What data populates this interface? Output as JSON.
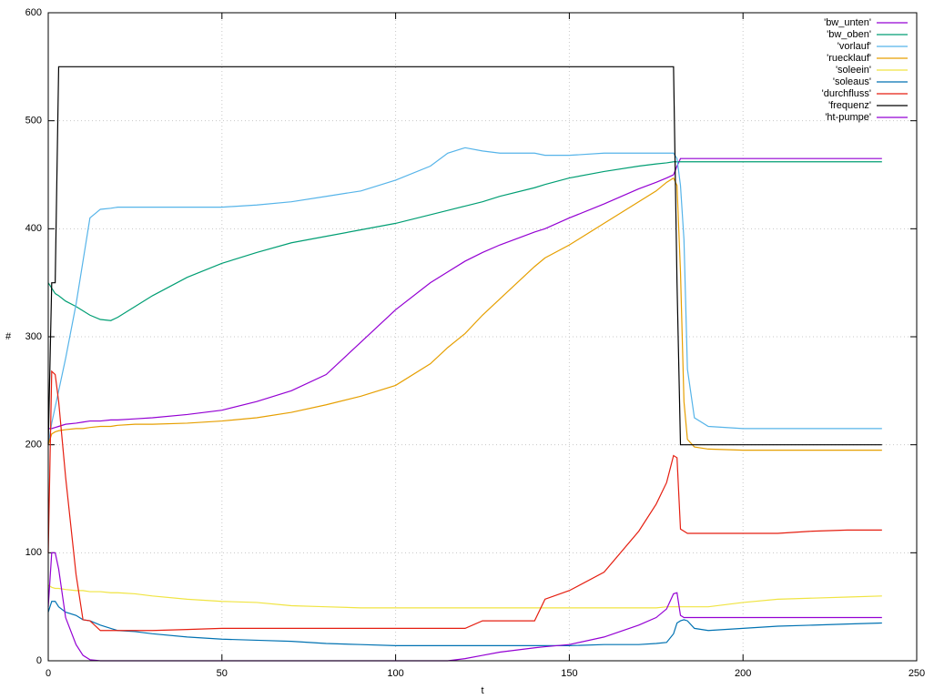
{
  "chart_data": {
    "type": "line",
    "x_label": "t",
    "y_label": "#",
    "xlim": [
      0,
      250
    ],
    "xticks": [
      0,
      50,
      100,
      150,
      200,
      250
    ],
    "ylim": [
      0,
      600
    ],
    "yticks": [
      0,
      100,
      200,
      300,
      400,
      500,
      600
    ],
    "grid": true,
    "legend": "top-right",
    "x": [
      0,
      1,
      2,
      3,
      5,
      8,
      10,
      12,
      15,
      18,
      20,
      25,
      30,
      40,
      50,
      60,
      70,
      80,
      90,
      100,
      110,
      115,
      120,
      125,
      130,
      140,
      143,
      150,
      160,
      170,
      175,
      178,
      180,
      181,
      182,
      183,
      184,
      186,
      190,
      200,
      210,
      220,
      230,
      240
    ],
    "series": [
      {
        "name": "'bw_unten'",
        "color": "#9400d3",
        "values": [
          215,
          215,
          216,
          217,
          219,
          220,
          221,
          222,
          222,
          223,
          223,
          224,
          225,
          228,
          232,
          240,
          250,
          265,
          295,
          325,
          350,
          360,
          370,
          378,
          385,
          397,
          400,
          410,
          423,
          437,
          443,
          447,
          450,
          458,
          465,
          465,
          465,
          465,
          465,
          465,
          465,
          465,
          465,
          465
        ]
      },
      {
        "name": "'bw_oben'",
        "color": "#009e73",
        "values": [
          350,
          345,
          340,
          338,
          333,
          328,
          324,
          320,
          316,
          315,
          318,
          328,
          338,
          355,
          368,
          378,
          387,
          393,
          399,
          405,
          413,
          417,
          421,
          425,
          430,
          438,
          441,
          447,
          453,
          458,
          460,
          461,
          462,
          462,
          462,
          462,
          462,
          462,
          462,
          462,
          462,
          462,
          462,
          462
        ]
      },
      {
        "name": "'vorlauf'",
        "color": "#56b4e9",
        "values": [
          200,
          220,
          235,
          250,
          280,
          330,
          370,
          410,
          418,
          419,
          420,
          420,
          420,
          420,
          420,
          422,
          425,
          430,
          435,
          445,
          458,
          470,
          475,
          472,
          470,
          470,
          468,
          468,
          470,
          470,
          470,
          470,
          470,
          465,
          440,
          390,
          270,
          225,
          217,
          215,
          215,
          215,
          215,
          215
        ]
      },
      {
        "name": "'ruecklauf'",
        "color": "#e69f00",
        "values": [
          200,
          210,
          212,
          213,
          214,
          215,
          215,
          216,
          217,
          217,
          218,
          219,
          219,
          220,
          222,
          225,
          230,
          237,
          245,
          255,
          275,
          290,
          303,
          320,
          335,
          365,
          373,
          385,
          405,
          425,
          435,
          443,
          447,
          440,
          360,
          240,
          205,
          198,
          196,
          195,
          195,
          195,
          195,
          195
        ]
      },
      {
        "name": "'soleein'",
        "color": "#f0e442",
        "values": [
          70,
          68,
          67,
          67,
          66,
          65,
          65,
          64,
          64,
          63,
          63,
          62,
          60,
          57,
          55,
          54,
          51,
          50,
          49,
          49,
          49,
          49,
          49,
          49,
          49,
          49,
          49,
          49,
          49,
          49,
          49,
          50,
          50,
          50,
          50,
          50,
          50,
          50,
          50,
          54,
          57,
          58,
          59,
          60
        ]
      },
      {
        "name": "'soleaus'",
        "color": "#0072b2",
        "values": [
          45,
          55,
          55,
          50,
          45,
          42,
          38,
          37,
          33,
          30,
          28,
          27,
          25,
          22,
          20,
          19,
          18,
          16,
          15,
          14,
          14,
          14,
          14,
          14,
          14,
          14,
          14,
          14,
          15,
          15,
          16,
          17,
          25,
          35,
          37,
          38,
          37,
          30,
          28,
          30,
          32,
          33,
          34,
          35
        ]
      },
      {
        "name": "'durchfluss'",
        "color": "#e51e10",
        "values": [
          100,
          268,
          265,
          240,
          170,
          80,
          38,
          37,
          28,
          28,
          28,
          28,
          28,
          29,
          30,
          30,
          30,
          30,
          30,
          30,
          30,
          30,
          30,
          37,
          37,
          37,
          57,
          65,
          82,
          120,
          145,
          165,
          190,
          188,
          122,
          120,
          118,
          118,
          118,
          118,
          118,
          120,
          121,
          121
        ]
      },
      {
        "name": "'frequenz'",
        "color": "#000000",
        "values": [
          200,
          350,
          350,
          550,
          550,
          550,
          550,
          550,
          550,
          550,
          550,
          550,
          550,
          550,
          550,
          550,
          550,
          550,
          550,
          550,
          550,
          550,
          550,
          550,
          550,
          550,
          550,
          550,
          550,
          550,
          550,
          550,
          550,
          350,
          200,
          200,
          200,
          200,
          200,
          200,
          200,
          200,
          200,
          200
        ]
      },
      {
        "name": "'ht-pumpe'",
        "color": "#9400d3",
        "values": [
          50,
          100,
          100,
          85,
          40,
          15,
          5,
          1,
          0,
          0,
          0,
          0,
          0,
          0,
          0,
          0,
          0,
          0,
          0,
          0,
          0,
          0,
          2,
          5,
          8,
          12,
          13,
          15,
          22,
          33,
          40,
          48,
          62,
          63,
          42,
          40,
          40,
          40,
          40,
          40,
          40,
          40,
          40,
          40
        ]
      }
    ]
  }
}
